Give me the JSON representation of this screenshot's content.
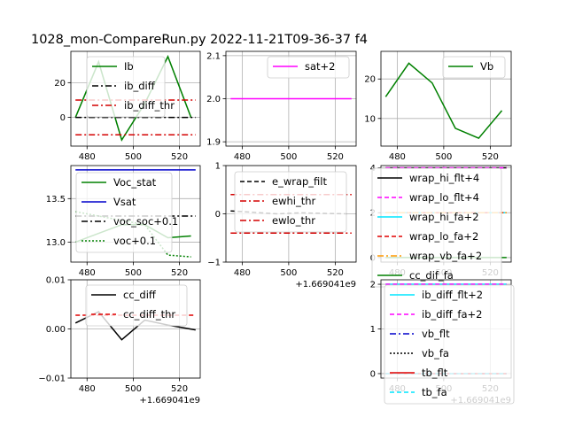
{
  "figure": {
    "title": "1028_mon-CompareRun.py   2022-11-21T09-36-37 f4"
  },
  "chart_data": [
    {
      "type": "line",
      "xlim": [
        473,
        529
      ],
      "ylim": [
        -16.5,
        38
      ],
      "xticks": [
        {
          "v": 480,
          "label": "480"
        },
        {
          "v": 500,
          "label": "500"
        },
        {
          "v": 520,
          "label": "520"
        }
      ],
      "yticks": [
        {
          "v": 0,
          "label": "0"
        },
        {
          "v": 20,
          "label": "20"
        }
      ],
      "grid": true,
      "legend": {
        "placement": "upper-center",
        "entries": [
          "Ib",
          "ib_diff",
          "ib_diff_thr"
        ]
      },
      "series": [
        {
          "name": "Ib",
          "color": "#008000",
          "dash": "",
          "x": [
            475,
            485,
            495,
            505,
            515,
            525
          ],
          "y": [
            0,
            32,
            -13,
            8,
            35,
            0
          ]
        },
        {
          "name": "",
          "color": "#008000",
          "dash": "",
          "alpha": 0.25,
          "x": [
            475,
            485,
            495,
            505,
            515,
            525
          ],
          "y": [
            0,
            32,
            -13,
            8,
            35,
            0
          ]
        },
        {
          "name": "ib_diff",
          "color": "#000000",
          "dash": "7,3,2,3",
          "x": [
            475,
            527
          ],
          "y": [
            0,
            0
          ]
        },
        {
          "name": "ib_diff_thr",
          "color": "#d40000",
          "dash": "7,3,2,3",
          "x": [
            475,
            527
          ],
          "y": [
            10,
            10
          ]
        },
        {
          "name": "",
          "color": "#d40000",
          "dash": "7,3,2,3",
          "x": [
            475,
            527
          ],
          "y": [
            -10,
            -10
          ]
        }
      ]
    },
    {
      "type": "line",
      "xlim": [
        473,
        529
      ],
      "ylim": [
        1.89,
        2.11
      ],
      "xticks": [
        {
          "v": 480,
          "label": "480"
        },
        {
          "v": 500,
          "label": "500"
        },
        {
          "v": 520,
          "label": "520"
        }
      ],
      "yticks": [
        {
          "v": 1.9,
          "label": "1.9"
        },
        {
          "v": 2.0,
          "label": "2.0"
        },
        {
          "v": 2.1,
          "label": "2.1"
        }
      ],
      "grid": true,
      "legend": {
        "placement": "upper-right",
        "entries": [
          "sat+2"
        ]
      },
      "series": [
        {
          "name": "sat+2",
          "color": "#ff00ff",
          "dash": "",
          "x": [
            475,
            527
          ],
          "y": [
            2.0,
            2.0
          ]
        }
      ]
    },
    {
      "type": "line",
      "xlim": [
        473,
        529
      ],
      "ylim": [
        3,
        27
      ],
      "xticks": [
        {
          "v": 480,
          "label": "480"
        },
        {
          "v": 500,
          "label": "500"
        },
        {
          "v": 520,
          "label": "520"
        }
      ],
      "yticks": [
        {
          "v": 10,
          "label": "10"
        },
        {
          "v": 20,
          "label": "20"
        }
      ],
      "grid": true,
      "legend": {
        "placement": "upper-right",
        "entries": [
          "Vb"
        ]
      },
      "series": [
        {
          "name": "Vb",
          "color": "#008000",
          "dash": "",
          "x": [
            475,
            485,
            495,
            505,
            515,
            525
          ],
          "y": [
            15.5,
            24,
            19,
            7.5,
            5,
            12
          ]
        }
      ]
    },
    {
      "type": "line",
      "xlim": [
        473,
        529
      ],
      "ylim": [
        12.77,
        13.88
      ],
      "xticks": [
        {
          "v": 480,
          "label": "480"
        },
        {
          "v": 500,
          "label": "500"
        },
        {
          "v": 520,
          "label": "520"
        }
      ],
      "yticks": [
        {
          "v": 13.0,
          "label": "13.0"
        },
        {
          "v": 13.5,
          "label": "13.5"
        }
      ],
      "grid": true,
      "legend": {
        "placement": "center",
        "entries": [
          "Voc_stat",
          "Vsat",
          "voc_soc+0.1",
          "voc+0.1"
        ]
      },
      "series": [
        {
          "name": "Voc_stat",
          "color": "#008000",
          "dash": "",
          "x": [
            475,
            485,
            495,
            505,
            515,
            525
          ],
          "y": [
            13.0,
            13.1,
            13.2,
            13.2,
            13.05,
            13.07
          ]
        },
        {
          "name": "Vsat",
          "color": "#0000cc",
          "dash": "",
          "x": [
            475,
            527
          ],
          "y": [
            13.83,
            13.83
          ]
        },
        {
          "name": "voc_soc+0.1",
          "color": "#000000",
          "dash": "7,3,2,3",
          "x": [
            475,
            527
          ],
          "y": [
            13.3,
            13.3
          ]
        },
        {
          "name": "voc+0.1",
          "color": "#008000",
          "dash": "2,2",
          "x": [
            475,
            485,
            495,
            505,
            515,
            525
          ],
          "y": [
            13.35,
            13.3,
            13.25,
            13.2,
            12.85,
            12.83
          ]
        }
      ]
    },
    {
      "type": "line",
      "xlim": [
        473,
        529
      ],
      "ylim": [
        -1,
        1
      ],
      "xticks": [
        {
          "v": 480,
          "label": "480"
        },
        {
          "v": 500,
          "label": "500"
        },
        {
          "v": 520,
          "label": "520"
        }
      ],
      "yticks": [
        {
          "v": -1,
          "label": "−1"
        },
        {
          "v": 0,
          "label": "0"
        },
        {
          "v": 1,
          "label": "1"
        }
      ],
      "offset_label": "+1.669041e9",
      "grid": true,
      "legend": {
        "placement": "upper-right",
        "entries": [
          "e_wrap_filt",
          "ewhi_thr",
          "ewlo_thr"
        ]
      },
      "series": [
        {
          "name": "e_wrap_filt",
          "color": "#000000",
          "dash": "5,3",
          "x": [
            475,
            485,
            495,
            505,
            515,
            525
          ],
          "y": [
            0.06,
            0.03,
            0.0,
            0.02,
            0.01,
            0.0
          ]
        },
        {
          "name": "ewhi_thr",
          "color": "#d40000",
          "dash": "7,3,2,3",
          "x": [
            475,
            527
          ],
          "y": [
            0.4,
            0.4
          ]
        },
        {
          "name": "ewlo_thr",
          "color": "#d40000",
          "dash": "7,3,2,3",
          "x": [
            475,
            527
          ],
          "y": [
            -0.4,
            -0.4
          ]
        }
      ]
    },
    {
      "type": "line",
      "xlim": [
        473,
        529
      ],
      "ylim": [
        -0.2,
        4.1
      ],
      "xticks": [
        {
          "v": 480,
          "label": "480"
        },
        {
          "v": 500,
          "label": "500"
        },
        {
          "v": 520,
          "label": "520"
        }
      ],
      "yticks": [
        {
          "v": 0,
          "label": "0"
        },
        {
          "v": 2,
          "label": "2"
        },
        {
          "v": 4,
          "label": "4"
        }
      ],
      "grid": true,
      "legend": {
        "placement": "upper-right",
        "entries": [
          "wrap_hi_flt+4",
          "wrap_lo_flt+4",
          "wrap_hi_fa+2",
          "wrap_lo_fa+2",
          "wrap_vb_fa+2",
          "cc_dif_fa"
        ]
      },
      "series": [
        {
          "name": "wrap_hi_flt+4",
          "color": "#000000",
          "dash": "",
          "x": [
            475,
            527
          ],
          "y": [
            4.0,
            4.0
          ]
        },
        {
          "name": "wrap_lo_flt+4",
          "color": "#ff00ff",
          "dash": "5,3",
          "x": [
            475,
            527
          ],
          "y": [
            4.0,
            4.0
          ]
        },
        {
          "name": "wrap_hi_fa+2",
          "color": "#00e5ff",
          "dash": "",
          "x": [
            475,
            527
          ],
          "y": [
            2.0,
            2.0
          ]
        },
        {
          "name": "wrap_lo_fa+2",
          "color": "#e00000",
          "dash": "5,3",
          "x": [
            475,
            527
          ],
          "y": [
            2.0,
            2.0
          ]
        },
        {
          "name": "wrap_vb_fa+2",
          "color": "#ff9900",
          "dash": "7,3,2,3",
          "x": [
            475,
            527
          ],
          "y": [
            2.0,
            2.0
          ]
        },
        {
          "name": "cc_dif_fa",
          "color": "#008000",
          "dash": "",
          "x": [
            475,
            527
          ],
          "y": [
            0,
            0
          ]
        }
      ]
    },
    {
      "type": "line",
      "xlim": [
        473,
        529
      ],
      "ylim": [
        -0.01,
        0.01
      ],
      "xticks": [
        {
          "v": 480,
          "label": "480"
        },
        {
          "v": 500,
          "label": "500"
        },
        {
          "v": 520,
          "label": "520"
        }
      ],
      "yticks": [
        {
          "v": -0.01,
          "label": "−0.01"
        },
        {
          "v": 0.0,
          "label": "0.00"
        },
        {
          "v": 0.01,
          "label": "0.01"
        }
      ],
      "offset_label": "+1.669041e9",
      "grid": true,
      "legend": {
        "placement": "upper-center",
        "entries": [
          "cc_diff",
          "cc_diff_thr"
        ]
      },
      "series": [
        {
          "name": "cc_diff",
          "color": "#000000",
          "dash": "",
          "x": [
            475,
            485,
            495,
            505,
            515,
            527
          ],
          "y": [
            0.0012,
            0.0035,
            -0.0022,
            0.0018,
            0.0008,
            -0.0002
          ]
        },
        {
          "name": "cc_diff_thr",
          "color": "#e00000",
          "dash": "5,3",
          "x": [
            475,
            527
          ],
          "y": [
            0.0028,
            0.0028
          ]
        }
      ]
    },
    {
      "type": "line",
      "xlim": [
        473,
        529
      ],
      "ylim": [
        -0.1,
        2.1
      ],
      "xticks": [
        {
          "v": 480,
          "label": "480"
        },
        {
          "v": 500,
          "label": "500"
        },
        {
          "v": 520,
          "label": "520"
        }
      ],
      "yticks": [
        {
          "v": 0,
          "label": "0"
        },
        {
          "v": 1,
          "label": "1"
        },
        {
          "v": 2,
          "label": "2"
        }
      ],
      "offset_label": "+1.669041e9",
      "grid": true,
      "legend": {
        "placement": "upper-center",
        "entries": [
          "ib_diff_flt+2",
          "ib_diff_fa+2",
          "vb_flt",
          "vb_fa",
          "tb_flt",
          "tb_fa"
        ]
      },
      "series": [
        {
          "name": "ib_diff_flt+2",
          "color": "#00e5ff",
          "dash": "",
          "x": [
            475,
            527
          ],
          "y": [
            2.0,
            2.0
          ]
        },
        {
          "name": "ib_diff_fa+2",
          "color": "#ff00ff",
          "dash": "5,3",
          "x": [
            475,
            527
          ],
          "y": [
            2.0,
            2.0
          ]
        },
        {
          "name": "vb_flt",
          "color": "#0000cc",
          "dash": "7,3,2,3",
          "x": [
            475,
            527
          ],
          "y": [
            0,
            0
          ]
        },
        {
          "name": "vb_fa",
          "color": "#000000",
          "dash": "2,2",
          "x": [
            475,
            527
          ],
          "y": [
            0,
            0
          ]
        },
        {
          "name": "tb_flt",
          "color": "#e00000",
          "dash": "",
          "x": [
            475,
            527
          ],
          "y": [
            0,
            0
          ]
        },
        {
          "name": "tb_fa",
          "color": "#00e5ff",
          "dash": "5,3",
          "x": [
            475,
            527
          ],
          "y": [
            0,
            0
          ]
        }
      ]
    }
  ]
}
